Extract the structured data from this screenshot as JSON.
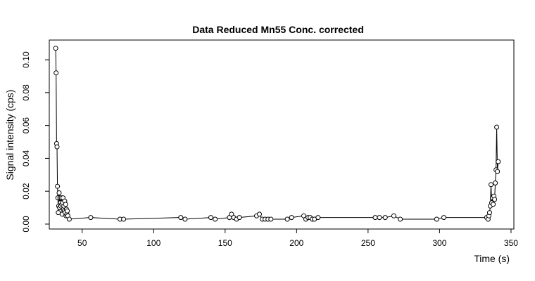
{
  "chart_data": {
    "type": "line",
    "title": "Data Reduced Mn55 Conc. corrected",
    "xlabel": "Time (s)",
    "ylabel": "Signal intensity (cps)",
    "xlim": [
      27,
      352
    ],
    "ylim": [
      -0.003,
      0.112
    ],
    "x_ticks": [
      50,
      100,
      150,
      200,
      250,
      300,
      350
    ],
    "x_tick_labels": [
      "50",
      "100",
      "150",
      "200",
      "250",
      "300",
      "350"
    ],
    "y_ticks": [
      0.0,
      0.02,
      0.04,
      0.06,
      0.08,
      0.1
    ],
    "y_tick_labels": [
      "0.00",
      "0.02",
      "0.04",
      "0.06",
      "0.08",
      "0.10"
    ],
    "grid": false,
    "line_style": "points connected by lines",
    "series": [
      {
        "x": [
          31.5,
          31.8,
          32.1,
          32.4,
          32.7,
          33.0,
          33.3,
          33.6,
          33.9,
          34.2,
          34.5,
          34.8,
          35.1,
          35.4,
          35.7,
          36.0,
          36.3,
          36.6,
          36.9,
          37.2,
          37.5,
          37.8,
          38.1,
          38.4,
          38.7,
          39.0,
          39.3,
          39.6,
          40.0,
          41.0,
          56.0,
          76.5,
          79.0,
          119.0,
          122.0,
          140.0,
          143.0,
          153.0,
          154.5,
          156.0,
          158.0,
          160.0,
          172.0,
          174.0,
          176.0,
          178.0,
          180.0,
          182.0,
          193.5,
          196.5,
          205.0,
          206.5,
          208.0,
          209.5,
          211.0,
          212.5,
          215.0,
          255.0,
          258.0,
          262.0,
          268.0,
          272.5,
          298.0,
          303.0,
          333.0,
          334.0,
          334.5,
          335.0,
          335.5,
          336.0,
          336.5,
          337.0,
          337.5,
          338.0,
          338.5,
          339.0,
          339.5,
          340.0,
          340.5,
          341.0
        ],
        "y": [
          0.107,
          0.092,
          0.049,
          0.047,
          0.023,
          0.016,
          0.007,
          0.011,
          0.019,
          0.01,
          0.016,
          0.013,
          0.011,
          0.016,
          0.012,
          0.006,
          0.013,
          0.016,
          0.009,
          0.011,
          0.008,
          0.014,
          0.007,
          0.012,
          0.005,
          0.009,
          0.006,
          0.008,
          0.005,
          0.003,
          0.004,
          0.003,
          0.003,
          0.004,
          0.003,
          0.004,
          0.003,
          0.004,
          0.006,
          0.004,
          0.003,
          0.004,
          0.005,
          0.006,
          0.003,
          0.003,
          0.003,
          0.003,
          0.003,
          0.004,
          0.005,
          0.003,
          0.004,
          0.004,
          0.003,
          0.003,
          0.004,
          0.004,
          0.004,
          0.004,
          0.005,
          0.003,
          0.003,
          0.004,
          0.004,
          0.003,
          0.005,
          0.007,
          0.011,
          0.024,
          0.013,
          0.016,
          0.012,
          0.017,
          0.015,
          0.025,
          0.033,
          0.059,
          0.032,
          0.038
        ]
      }
    ]
  }
}
